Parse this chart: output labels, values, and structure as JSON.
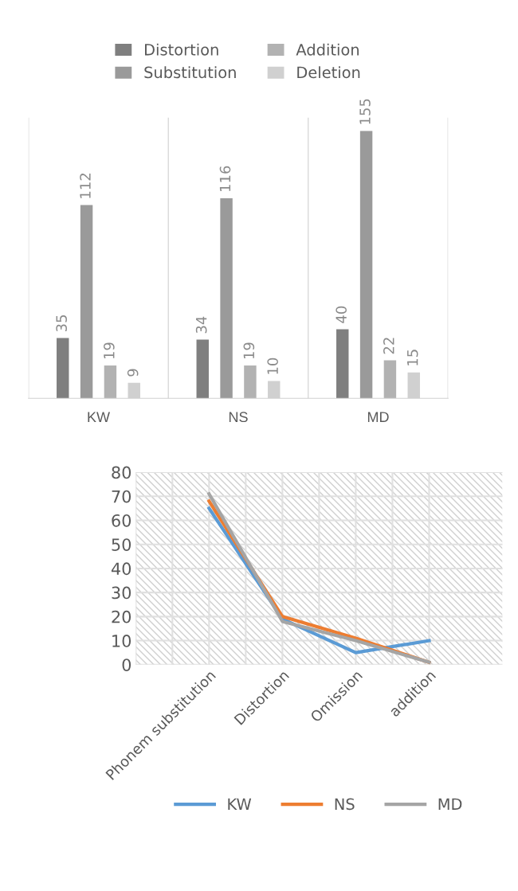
{
  "chart_data": [
    {
      "type": "bar",
      "categories": [
        "KW",
        "NS",
        "MD"
      ],
      "series": [
        {
          "name": "Distortion",
          "color": "#7f7f7f",
          "values": [
            35,
            34,
            40
          ]
        },
        {
          "name": "Substitution",
          "color": "#9a9a9a",
          "values": [
            112,
            116,
            155
          ]
        },
        {
          "name": "Addition",
          "color": "#b2b2b2",
          "values": [
            19,
            19,
            22
          ]
        },
        {
          "name": "Deletion",
          "color": "#d0d0d0",
          "values": [
            9,
            10,
            15
          ]
        }
      ],
      "data_labels": true,
      "grid": "x",
      "legend": "top",
      "tick_labels": "x"
    },
    {
      "type": "line",
      "categories": [
        "Phonem substitution",
        "Distortion",
        "Omission",
        "addition"
      ],
      "series": [
        {
          "name": "KW",
          "color": "#5b9bd5",
          "values": [
            65,
            19,
            5,
            10
          ]
        },
        {
          "name": "NS",
          "color": "#ed7d31",
          "values": [
            68,
            20,
            11,
            1
          ]
        },
        {
          "name": "MD",
          "color": "#a5a5a5",
          "values": [
            71,
            18,
            10,
            1
          ]
        }
      ],
      "ylim": [
        0,
        80
      ],
      "yticks": [
        0,
        10,
        20,
        30,
        40,
        50,
        60,
        70,
        80
      ],
      "grid": true,
      "legend": "bottom",
      "marker": "none",
      "line_style": "solid"
    }
  ]
}
